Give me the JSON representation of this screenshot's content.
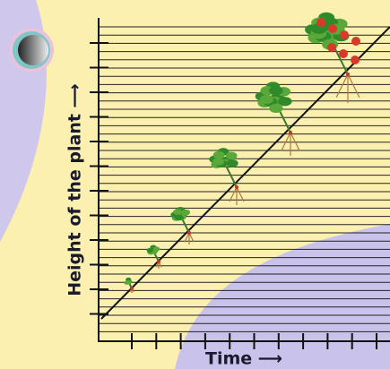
{
  "axes": {
    "y_label": "Height of the plant ⟶",
    "x_label": "Time ⟶"
  }
}
